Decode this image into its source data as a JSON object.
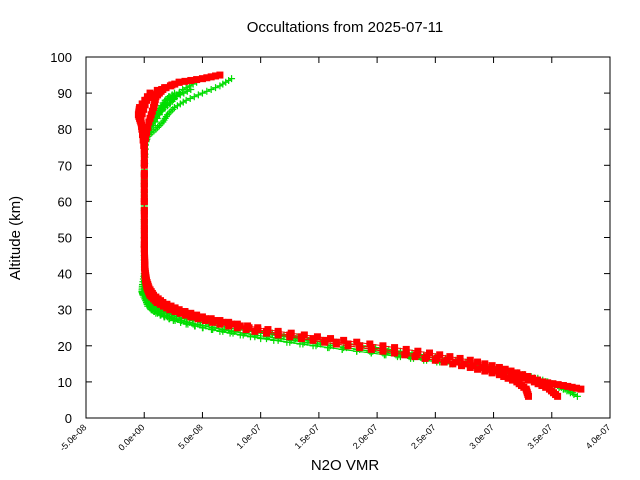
{
  "chart_data": {
    "type": "scatter",
    "title": "Occultations from 2025-07-11",
    "xlabel": "N2O VMR",
    "ylabel": "Altitude (km)",
    "xlim": [
      -5e-08,
      4e-07
    ],
    "ylim": [
      0,
      100
    ],
    "xticks": [
      "-5.0e-08",
      "0.0e+00",
      "5.0e-08",
      "1.0e-07",
      "1.5e-07",
      "2.0e-07",
      "2.5e-07",
      "3.0e-07",
      "3.5e-07",
      "4.0e-07"
    ],
    "yticks": [
      "0",
      "10",
      "20",
      "30",
      "40",
      "50",
      "60",
      "70",
      "80",
      "90",
      "100"
    ],
    "grid": false,
    "legend": "none",
    "series": [
      {
        "marker": "plus",
        "color": "#00dd00",
        "profiles": [
          {
            "points": [
              [
                3.72e-07,
                6
              ],
              [
                3.6e-07,
                8
              ],
              [
                3.45e-07,
                10
              ],
              [
                3.25e-07,
                12
              ],
              [
                2.95e-07,
                14
              ],
              [
                2.6e-07,
                16
              ],
              [
                2.2e-07,
                18
              ],
              [
                1.75e-07,
                20
              ],
              [
                1.3e-07,
                22
              ],
              [
                9e-08,
                24
              ],
              [
                5.5e-08,
                26
              ],
              [
                2.8e-08,
                28
              ],
              [
                1.2e-08,
                30
              ],
              [
                4e-09,
                32
              ],
              [
                1.5e-09,
                34
              ],
              [
                6e-10,
                36
              ],
              [
                3e-10,
                38
              ],
              [
                2e-10,
                40
              ],
              [
                1.5e-10,
                45
              ],
              [
                1.2e-10,
                50
              ],
              [
                1e-10,
                60
              ],
              [
                1e-10,
                70
              ],
              [
                2e-10,
                75
              ],
              [
                3e-09,
                78
              ],
              [
                1e-08,
                80
              ],
              [
                1.6e-08,
                82
              ],
              [
                2e-08,
                84
              ],
              [
                2.6e-08,
                86
              ],
              [
                3.6e-08,
                88
              ],
              [
                5e-08,
                90
              ],
              [
                6.5e-08,
                92
              ],
              [
                7.5e-08,
                94
              ]
            ]
          },
          {
            "points": [
              [
                3.68e-07,
                7
              ],
              [
                3.55e-07,
                9
              ],
              [
                3.38e-07,
                11
              ],
              [
                3.15e-07,
                13
              ],
              [
                2.85e-07,
                15
              ],
              [
                2.5e-07,
                17
              ],
              [
                2.1e-07,
                19
              ],
              [
                1.65e-07,
                21
              ],
              [
                1.2e-07,
                23
              ],
              [
                8e-08,
                25
              ],
              [
                4.8e-08,
                27
              ],
              [
                2.4e-08,
                29
              ],
              [
                1e-08,
                31
              ],
              [
                3.5e-09,
                33
              ],
              [
                1.2e-09,
                35
              ],
              [
                4e-10,
                38
              ],
              [
                2e-10,
                42
              ],
              [
                1.2e-10,
                50
              ],
              [
                1e-10,
                65
              ],
              [
                5e-10,
                76
              ],
              [
                6e-09,
                80
              ],
              [
                1.3e-08,
                84
              ],
              [
                2.2e-08,
                88
              ],
              [
                3.3e-08,
                91
              ],
              [
                4.5e-08,
                93
              ]
            ]
          },
          {
            "points": [
              [
                3.6e-07,
                8
              ],
              [
                3.45e-07,
                10
              ],
              [
                3.2e-07,
                12
              ],
              [
                2.9e-07,
                14
              ],
              [
                2.5e-07,
                16
              ],
              [
                2.05e-07,
                18
              ],
              [
                1.6e-07,
                20
              ],
              [
                1.15e-07,
                22
              ],
              [
                7.5e-08,
                24
              ],
              [
                4.2e-08,
                26
              ],
              [
                2e-08,
                28
              ],
              [
                7e-09,
                30
              ],
              [
                2e-09,
                32
              ],
              [
                -1e-09,
                34
              ],
              [
                -2e-09,
                35
              ],
              [
                -1.5e-09,
                37
              ],
              [
                1e-10,
                40
              ],
              [
                1e-10,
                55
              ],
              [
                1e-10,
                70
              ],
              [
                2e-09,
                79
              ],
              [
                9e-09,
                83
              ],
              [
                1.7e-08,
                86
              ],
              [
                2.8e-08,
                89
              ],
              [
                4e-08,
                91
              ]
            ]
          },
          {
            "points": [
              [
                3.55e-07,
                9
              ],
              [
                3.35e-07,
                11
              ],
              [
                3.05e-07,
                13
              ],
              [
                2.7e-07,
                15
              ],
              [
                2.3e-07,
                17
              ],
              [
                1.85e-07,
                19
              ],
              [
                1.4e-07,
                21
              ],
              [
                9.5e-08,
                23
              ],
              [
                6e-08,
                25
              ],
              [
                3.2e-08,
                27
              ],
              [
                1.5e-08,
                29
              ],
              [
                5e-09,
                31
              ],
              [
                1.5e-09,
                33
              ],
              [
                5e-10,
                36
              ],
              [
                2e-10,
                40
              ],
              [
                1e-10,
                55
              ],
              [
                1e-10,
                68
              ],
              [
                1e-09,
                78
              ],
              [
                7e-09,
                82
              ],
              [
                1.4e-08,
                85
              ],
              [
                2.2e-08,
                87
              ],
              [
                3e-08,
                90
              ]
            ]
          },
          {
            "points": [
              [
                3.45e-07,
                10
              ],
              [
                3.2e-07,
                12
              ],
              [
                2.85e-07,
                14
              ],
              [
                2.4e-07,
                16
              ],
              [
                1.95e-07,
                18
              ],
              [
                1.45e-07,
                20
              ],
              [
                1e-07,
                22
              ],
              [
                6.5e-08,
                24
              ],
              [
                3.6e-08,
                26
              ],
              [
                1.7e-08,
                28
              ],
              [
                6e-09,
                30
              ],
              [
                2e-09,
                32
              ],
              [
                6e-10,
                35
              ],
              [
                2e-10,
                39
              ],
              [
                1e-10,
                50
              ],
              [
                1e-10,
                66
              ],
              [
                4e-10,
                77
              ],
              [
                5e-09,
                81
              ],
              [
                1.1e-08,
                85
              ],
              [
                1.8e-08,
                88
              ],
              [
                2.6e-08,
                90
              ]
            ]
          },
          {
            "points": [
              [
                3.35e-07,
                11
              ],
              [
                3.05e-07,
                13
              ],
              [
                2.65e-07,
                15
              ],
              [
                2.2e-07,
                17
              ],
              [
                1.7e-07,
                19
              ],
              [
                1.25e-07,
                21
              ],
              [
                8.5e-08,
                23
              ],
              [
                5e-08,
                25
              ],
              [
                2.5e-08,
                27
              ],
              [
                1e-08,
                29
              ],
              [
                3e-09,
                31
              ],
              [
                1e-09,
                33
              ],
              [
                3e-10,
                37
              ],
              [
                1e-10,
                45
              ],
              [
                1e-10,
                64
              ],
              [
                2e-10,
                76
              ],
              [
                4e-09,
                80
              ],
              [
                9e-09,
                83
              ],
              [
                1.5e-08,
                86
              ],
              [
                2.1e-08,
                89
              ]
            ]
          }
        ]
      },
      {
        "marker": "square",
        "color": "#ff0000",
        "profiles": [
          {
            "points": [
              [
                3.75e-07,
                8
              ],
              [
                3.6e-07,
                9
              ],
              [
                3.42e-07,
                10
              ],
              [
                3.25e-07,
                12
              ],
              [
                3.05e-07,
                14
              ],
              [
                2.8e-07,
                16
              ],
              [
                2.45e-07,
                18
              ],
              [
                2.05e-07,
                20
              ],
              [
                1.6e-07,
                22
              ],
              [
                1.15e-07,
                24
              ],
              [
                8e-08,
                26
              ],
              [
                5e-08,
                28
              ],
              [
                3e-08,
                30
              ],
              [
                1.6e-08,
                32
              ],
              [
                8e-09,
                34
              ],
              [
                4e-09,
                36
              ],
              [
                2e-09,
                38
              ],
              [
                1e-09,
                40
              ],
              [
                5e-10,
                42
              ],
              [
                3e-10,
                44
              ],
              [
                2e-10,
                46
              ],
              [
                1.5e-10,
                50
              ],
              [
                1e-10,
                60
              ],
              [
                1e-10,
                70
              ],
              [
                1e-10,
                78
              ],
              [
                -3e-09,
                82
              ],
              [
                -5e-09,
                84
              ],
              [
                -4e-09,
                86
              ],
              [
                5e-09,
                90
              ],
              [
                3e-08,
                93
              ],
              [
                5e-08,
                94
              ],
              [
                6.5e-08,
                95
              ]
            ]
          },
          {
            "points": [
              [
                3.55e-07,
                6
              ],
              [
                3.48e-07,
                8
              ],
              [
                3.35e-07,
                10
              ],
              [
                3.15e-07,
                12
              ],
              [
                2.9e-07,
                14
              ],
              [
                2.6e-07,
                16
              ],
              [
                2.25e-07,
                18
              ],
              [
                1.85e-07,
                20
              ],
              [
                1.45e-07,
                22
              ],
              [
                1.05e-07,
                24
              ],
              [
                7.5e-08,
                26
              ],
              [
                4.5e-08,
                28
              ],
              [
                2.6e-08,
                30
              ],
              [
                1.3e-08,
                32
              ],
              [
                6e-09,
                34
              ],
              [
                3e-09,
                36
              ],
              [
                1.5e-09,
                38
              ],
              [
                7e-10,
                40
              ],
              [
                3e-10,
                43
              ],
              [
                1.5e-10,
                48
              ],
              [
                1e-10,
                60
              ],
              [
                1e-10,
                74
              ],
              [
                -2e-09,
                80
              ],
              [
                -3e-09,
                83
              ],
              [
                2e-09,
                88
              ],
              [
                1.5e-08,
                91
              ],
              [
                3e-08,
                93
              ]
            ]
          },
          {
            "points": [
              [
                3.3e-07,
                6
              ],
              [
                3.28e-07,
                8
              ],
              [
                3.2e-07,
                10
              ],
              [
                3.05e-07,
                12
              ],
              [
                2.8e-07,
                14
              ],
              [
                2.5e-07,
                16
              ],
              [
                2.15e-07,
                18
              ],
              [
                1.75e-07,
                20
              ],
              [
                1.35e-07,
                22
              ],
              [
                9.5e-08,
                24
              ],
              [
                6.5e-08,
                26
              ],
              [
                4e-08,
                28
              ],
              [
                2.2e-08,
                30
              ],
              [
                1.1e-08,
                32
              ],
              [
                5e-09,
                34
              ],
              [
                2.5e-09,
                36
              ],
              [
                1.2e-09,
                38
              ],
              [
                6e-10,
                40
              ],
              [
                3e-10,
                43
              ],
              [
                1.5e-10,
                48
              ],
              [
                1e-10,
                65
              ],
              [
                2e-10,
                76
              ],
              [
                4e-09,
                82
              ],
              [
                8e-09,
                86
              ],
              [
                1e-08,
                89
              ],
              [
                1.6e-08,
                91
              ]
            ]
          }
        ]
      }
    ]
  }
}
